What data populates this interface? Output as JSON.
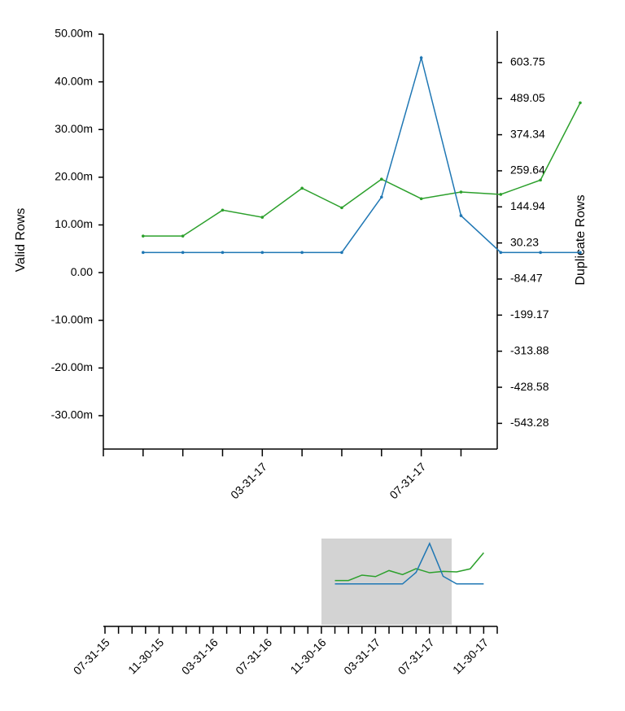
{
  "chart_data": {
    "type": "line",
    "ylabel": "Valid Rows",
    "y2label": "Duplicate Rows",
    "categories": [
      null,
      null,
      null,
      null,
      "03-31-17",
      null,
      null,
      null,
      "07-31-17",
      null,
      null,
      null,
      null
    ],
    "series": [
      {
        "color": "#2ca02c",
        "values": [
          null,
          7.67,
          7.67,
          13.1,
          11.6,
          17.7,
          13.6,
          19.6,
          15.5,
          16.9,
          16.4,
          19.4,
          35.6
        ]
      },
      {
        "color": "#1f77b4",
        "axis": "y2",
        "values": [
          null,
          0,
          0,
          0,
          0,
          0,
          0,
          176,
          619,
          117,
          0,
          0,
          0
        ]
      }
    ],
    "ylim": [
      -37,
      50
    ],
    "yticks": [
      {
        "value": 50,
        "label": "50.00m"
      },
      {
        "value": 40,
        "label": "40.00m"
      },
      {
        "value": 30,
        "label": "30.00m"
      },
      {
        "value": 20,
        "label": "20.00m"
      },
      {
        "value": 10,
        "label": "10.00m"
      },
      {
        "value": 0,
        "label": "0.00"
      },
      {
        "value": -10,
        "label": "-10.00m"
      },
      {
        "value": -20,
        "label": "-20.00m"
      },
      {
        "value": -30,
        "label": "-30.00m"
      }
    ],
    "y2lim": [
      -625,
      694
    ],
    "y2ticks": [
      603.75,
      489.05,
      374.34,
      259.64,
      144.94,
      30.23,
      -84.47,
      -199.17,
      -313.88,
      -428.58,
      -543.28
    ],
    "context_categories": [
      "07-31-15",
      null,
      null,
      null,
      "11-30-15",
      null,
      null,
      null,
      "03-31-16",
      null,
      null,
      null,
      "07-31-16",
      null,
      null,
      null,
      "11-30-16",
      null,
      null,
      null,
      "03-31-17",
      null,
      null,
      null,
      "07-31-17",
      null,
      null,
      null,
      "11-30-17"
    ]
  }
}
